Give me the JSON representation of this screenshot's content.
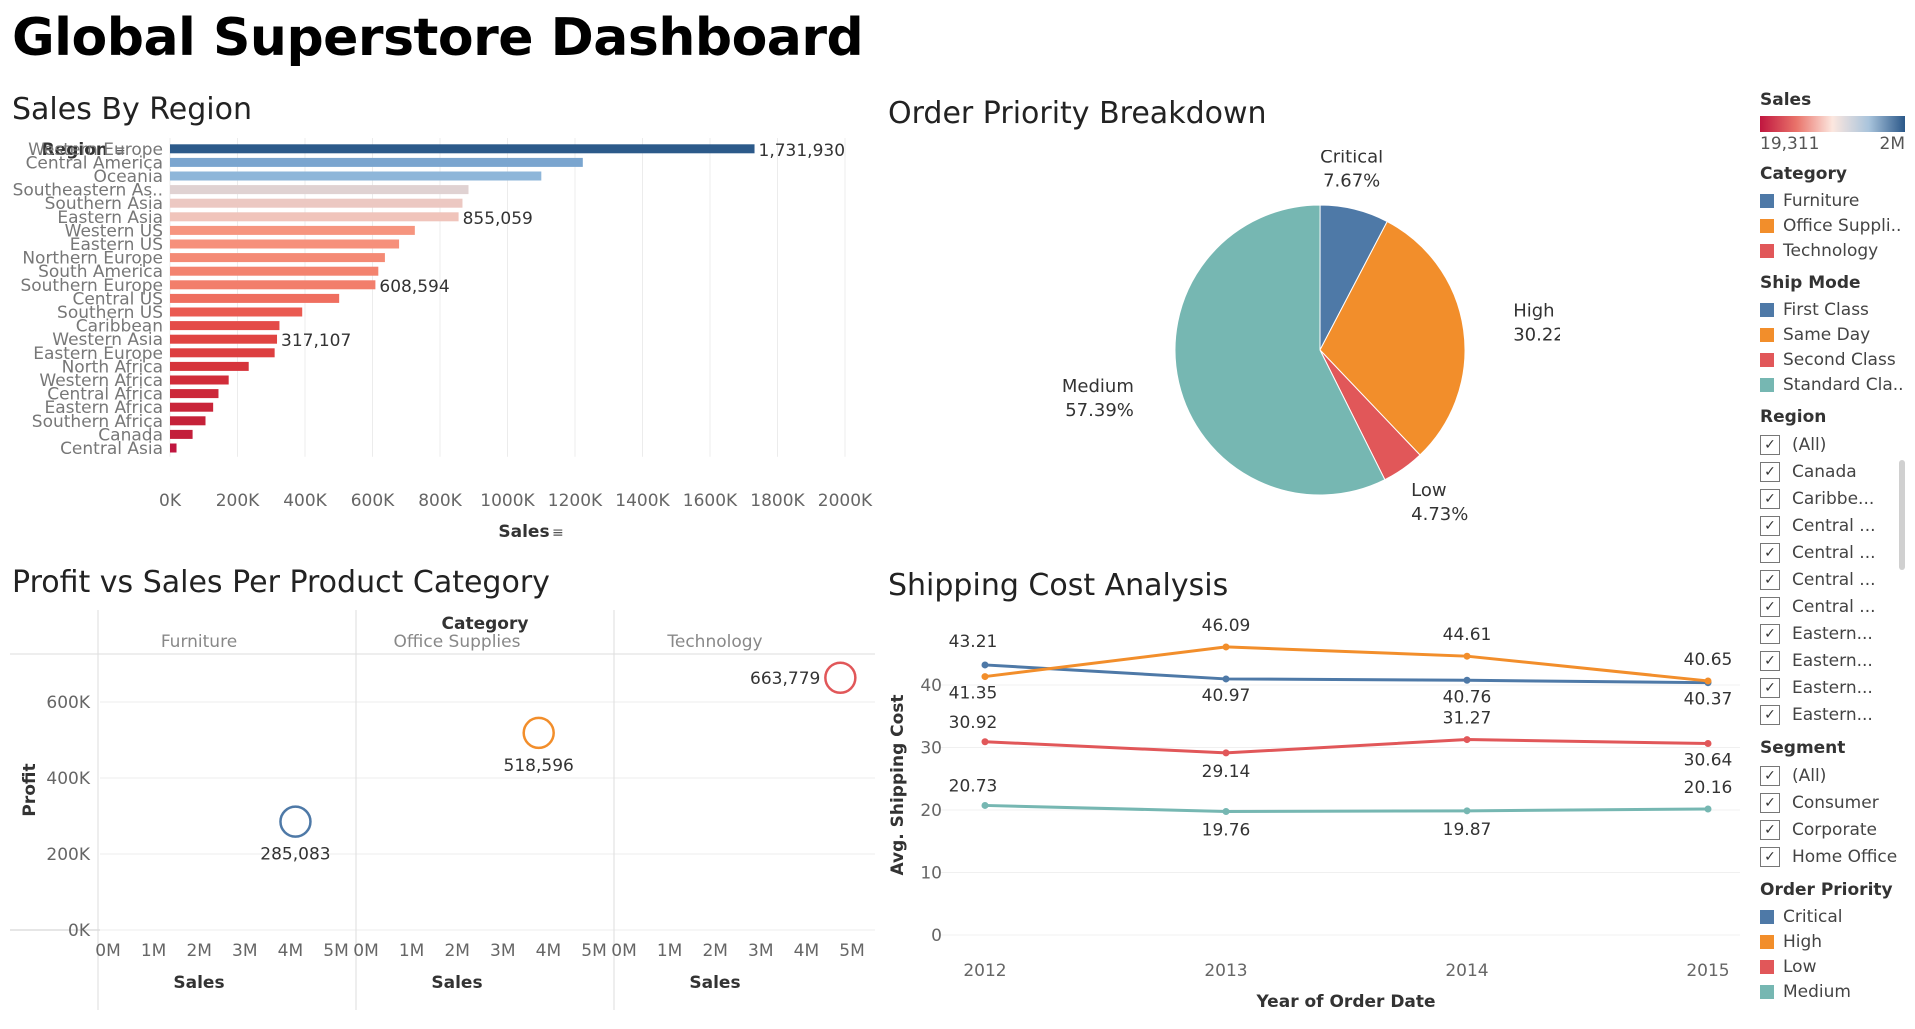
{
  "dashboard_title": "Global Superstore Dashboard",
  "colors": {
    "blue": "#4e79a7",
    "orange": "#f28e2b",
    "red": "#e15759",
    "teal": "#76b7b2"
  },
  "chart_data": [
    {
      "id": "sales_by_region",
      "type": "bar",
      "title": "Sales By Region",
      "ylabel": "Region",
      "xlabel": "Sales",
      "xlim": [
        0,
        2000000
      ],
      "ticks": [
        {
          "value": 0,
          "label": "0K"
        },
        {
          "value": 200000,
          "label": "200K"
        },
        {
          "value": 400000,
          "label": "400K"
        },
        {
          "value": 600000,
          "label": "600K"
        },
        {
          "value": 800000,
          "label": "800K"
        },
        {
          "value": 1000000,
          "label": "1000K"
        },
        {
          "value": 1200000,
          "label": "1200K"
        },
        {
          "value": 1400000,
          "label": "1400K"
        },
        {
          "value": 1600000,
          "label": "1600K"
        },
        {
          "value": 1800000,
          "label": "1800K"
        },
        {
          "value": 2000000,
          "label": "2000K"
        }
      ],
      "bars": [
        {
          "label": "Western Europe",
          "value": 1731930,
          "color": "#2c5a8a",
          "data_label": "1,731,930"
        },
        {
          "label": "Central America",
          "value": 1223101,
          "color": "#7aa5cf"
        },
        {
          "label": "Oceania",
          "value": 1100185,
          "color": "#8eb6d9"
        },
        {
          "label": "Southeastern As..",
          "value": 884423,
          "color": "#e0d2d2"
        },
        {
          "label": "Southern Asia",
          "value": 866573,
          "color": "#ecc8c2"
        },
        {
          "label": "Eastern Asia",
          "value": 855059,
          "color": "#f0c4bb",
          "data_label": "855,059"
        },
        {
          "label": "Western US",
          "value": 725458,
          "color": "#f6957f"
        },
        {
          "label": "Eastern US",
          "value": 678781,
          "color": "#f6907b"
        },
        {
          "label": "Northern Europe",
          "value": 636779,
          "color": "#f48a75"
        },
        {
          "label": "South America",
          "value": 617224,
          "color": "#f3836f"
        },
        {
          "label": "Southern Europe",
          "value": 608594,
          "color": "#f27e6b",
          "data_label": "608,594"
        },
        {
          "label": "Central US",
          "value": 501240,
          "color": "#ef6e5f"
        },
        {
          "label": "Southern US",
          "value": 391722,
          "color": "#ea5a51"
        },
        {
          "label": "Caribbean",
          "value": 324281,
          "color": "#e44b48"
        },
        {
          "label": "Western Asia",
          "value": 317107,
          "color": "#e04442",
          "data_label": "317,107"
        },
        {
          "label": "Eastern Europe",
          "value": 310033,
          "color": "#dd3f40"
        },
        {
          "label": "North Africa",
          "value": 233216,
          "color": "#d6343b"
        },
        {
          "label": "Western Africa",
          "value": 173879,
          "color": "#d12d3a"
        },
        {
          "label": "Central Africa",
          "value": 143630,
          "color": "#cc2839"
        },
        {
          "label": "Eastern Africa",
          "value": 127856,
          "color": "#c92539"
        },
        {
          "label": "Southern Africa",
          "value": 105192,
          "color": "#c52239"
        },
        {
          "label": "Canada",
          "value": 66929,
          "color": "#c31e3a"
        },
        {
          "label": "Central Asia",
          "value": 19311,
          "color": "#c0163f"
        }
      ]
    },
    {
      "id": "order_priority",
      "type": "pie",
      "title": "Order Priority Breakdown",
      "slices": [
        {
          "name": "Critical",
          "pct": 7.67,
          "label": "7.67%",
          "color": "#4e79a7"
        },
        {
          "name": "High",
          "pct": 30.22,
          "label": "30.22%",
          "color": "#f28e2b"
        },
        {
          "name": "Low",
          "pct": 4.73,
          "label": "4.73%",
          "color": "#e15759"
        },
        {
          "name": "Medium",
          "pct": 57.39,
          "label": "57.39%",
          "color": "#76b7b2"
        }
      ]
    },
    {
      "id": "profit_vs_sales",
      "type": "scatter",
      "title": "Profit vs Sales Per Product Category",
      "column_header": "Category",
      "ylabel": "Profit",
      "ylim": [
        0,
        700000
      ],
      "yticks": [
        {
          "value": 0,
          "label": "0K"
        },
        {
          "value": 200000,
          "label": "200K"
        },
        {
          "value": 400000,
          "label": "400K"
        },
        {
          "value": 600000,
          "label": "600K"
        }
      ],
      "xlim": [
        0,
        5000000
      ],
      "xticks": [
        {
          "value": 0,
          "label": "0M"
        },
        {
          "value": 1000000,
          "label": "1M"
        },
        {
          "value": 2000000,
          "label": "2M"
        },
        {
          "value": 3000000,
          "label": "3M"
        },
        {
          "value": 4000000,
          "label": "4M"
        },
        {
          "value": 5000000,
          "label": "5M"
        }
      ],
      "xlabel": "Sales",
      "panels": [
        {
          "category": "Furniture",
          "sales": 4110874,
          "profit": 285083,
          "label": "285,083",
          "color": "#4e79a7"
        },
        {
          "category": "Office Supplies",
          "sales": 3787070,
          "profit": 518596,
          "label": "518,596",
          "color": "#f28e2b"
        },
        {
          "category": "Technology",
          "sales": 4744557,
          "profit": 663779,
          "label": "663,779",
          "color": "#e15759"
        }
      ]
    },
    {
      "id": "shipping_cost",
      "type": "line",
      "title": "Shipping Cost Analysis",
      "ylabel": "Avg. Shipping Cost",
      "xlabel": "Year of Order Date",
      "categories": [
        "2012",
        "2013",
        "2014",
        "2015"
      ],
      "ylim": [
        0,
        48
      ],
      "yticks": [
        0,
        10,
        20,
        30,
        40
      ],
      "series": [
        {
          "name": "Critical",
          "color": "#4e79a7",
          "values": [
            43.21,
            40.97,
            40.76,
            40.37
          ],
          "labels": [
            "43.21",
            "40.97",
            "40.76",
            "40.37"
          ]
        },
        {
          "name": "High",
          "color": "#f28e2b",
          "values": [
            41.35,
            46.09,
            44.61,
            40.65
          ],
          "labels": [
            "41.35",
            "46.09",
            "44.61",
            "40.65"
          ]
        },
        {
          "name": "Low",
          "color": "#e15759",
          "values": [
            30.92,
            29.14,
            31.27,
            30.64
          ],
          "labels": [
            "30.92",
            "29.14",
            "31.27",
            "30.64"
          ]
        },
        {
          "name": "Medium",
          "color": "#76b7b2",
          "values": [
            20.73,
            19.76,
            19.87,
            20.16
          ],
          "labels": [
            "20.73",
            "19.76",
            "19.87",
            "20.16"
          ]
        }
      ]
    }
  ],
  "sidebar": {
    "sales_legend": {
      "title": "Sales",
      "min": "19,311",
      "max": "2M"
    },
    "category": {
      "title": "Category",
      "items": [
        {
          "label": "Furniture",
          "color": "#4e79a7"
        },
        {
          "label": "Office Suppli..",
          "color": "#f28e2b"
        },
        {
          "label": "Technology",
          "color": "#e15759"
        }
      ]
    },
    "ship_mode": {
      "title": "Ship Mode",
      "items": [
        {
          "label": "First Class",
          "color": "#4e79a7"
        },
        {
          "label": "Same Day",
          "color": "#f28e2b"
        },
        {
          "label": "Second Class",
          "color": "#e15759"
        },
        {
          "label": "Standard Cla..",
          "color": "#76b7b2"
        }
      ]
    },
    "region": {
      "title": "Region",
      "items": [
        "(All)",
        "Canada",
        "Caribbe...",
        "Central ...",
        "Central ...",
        "Central ...",
        "Central ...",
        "Eastern...",
        "Eastern...",
        "Eastern...",
        "Eastern..."
      ]
    },
    "segment": {
      "title": "Segment",
      "items": [
        "(All)",
        "Consumer",
        "Corporate",
        "Home Office"
      ]
    },
    "order_priority": {
      "title": "Order Priority",
      "items": [
        {
          "label": "Critical",
          "color": "#4e79a7"
        },
        {
          "label": "High",
          "color": "#f28e2b"
        },
        {
          "label": "Low",
          "color": "#e15759"
        },
        {
          "label": "Medium",
          "color": "#76b7b2"
        }
      ]
    }
  }
}
